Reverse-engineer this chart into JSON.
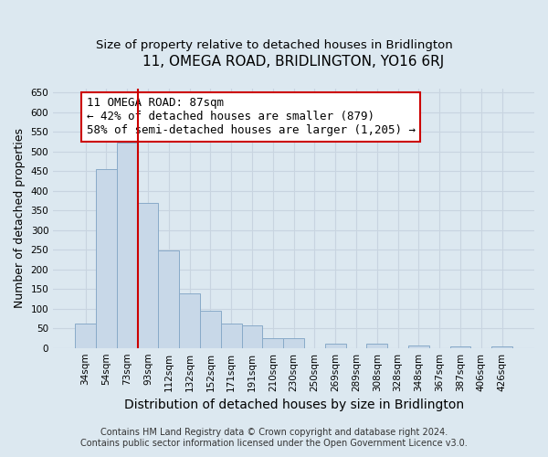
{
  "title": "11, OMEGA ROAD, BRIDLINGTON, YO16 6RJ",
  "subtitle": "Size of property relative to detached houses in Bridlington",
  "xlabel": "Distribution of detached houses by size in Bridlington",
  "ylabel": "Number of detached properties",
  "footnote1": "Contains HM Land Registry data © Crown copyright and database right 2024.",
  "footnote2": "Contains public sector information licensed under the Open Government Licence v3.0.",
  "bar_labels": [
    "34sqm",
    "54sqm",
    "73sqm",
    "93sqm",
    "112sqm",
    "132sqm",
    "152sqm",
    "171sqm",
    "191sqm",
    "210sqm",
    "230sqm",
    "250sqm",
    "269sqm",
    "289sqm",
    "308sqm",
    "328sqm",
    "348sqm",
    "367sqm",
    "387sqm",
    "406sqm",
    "426sqm"
  ],
  "bar_values": [
    62,
    455,
    522,
    370,
    248,
    140,
    95,
    62,
    58,
    25,
    25,
    0,
    10,
    0,
    12,
    0,
    7,
    0,
    5,
    0,
    3
  ],
  "bar_color": "#c8d8e8",
  "bar_edge_color": "#88aac8",
  "vline_color": "#cc0000",
  "annotation_text": "11 OMEGA ROAD: 87sqm\n← 42% of detached houses are smaller (879)\n58% of semi-detached houses are larger (1,205) →",
  "annotation_box_edge_color": "#cc0000",
  "annotation_box_face_color": "#ffffff",
  "ylim": [
    0,
    660
  ],
  "yticks": [
    0,
    50,
    100,
    150,
    200,
    250,
    300,
    350,
    400,
    450,
    500,
    550,
    600,
    650
  ],
  "grid_color": "#c8d4e0",
  "background_color": "#dce8f0",
  "title_fontsize": 11,
  "subtitle_fontsize": 9.5,
  "xlabel_fontsize": 10,
  "ylabel_fontsize": 9,
  "annotation_fontsize": 9,
  "tick_fontsize": 7.5,
  "footnote_fontsize": 7
}
